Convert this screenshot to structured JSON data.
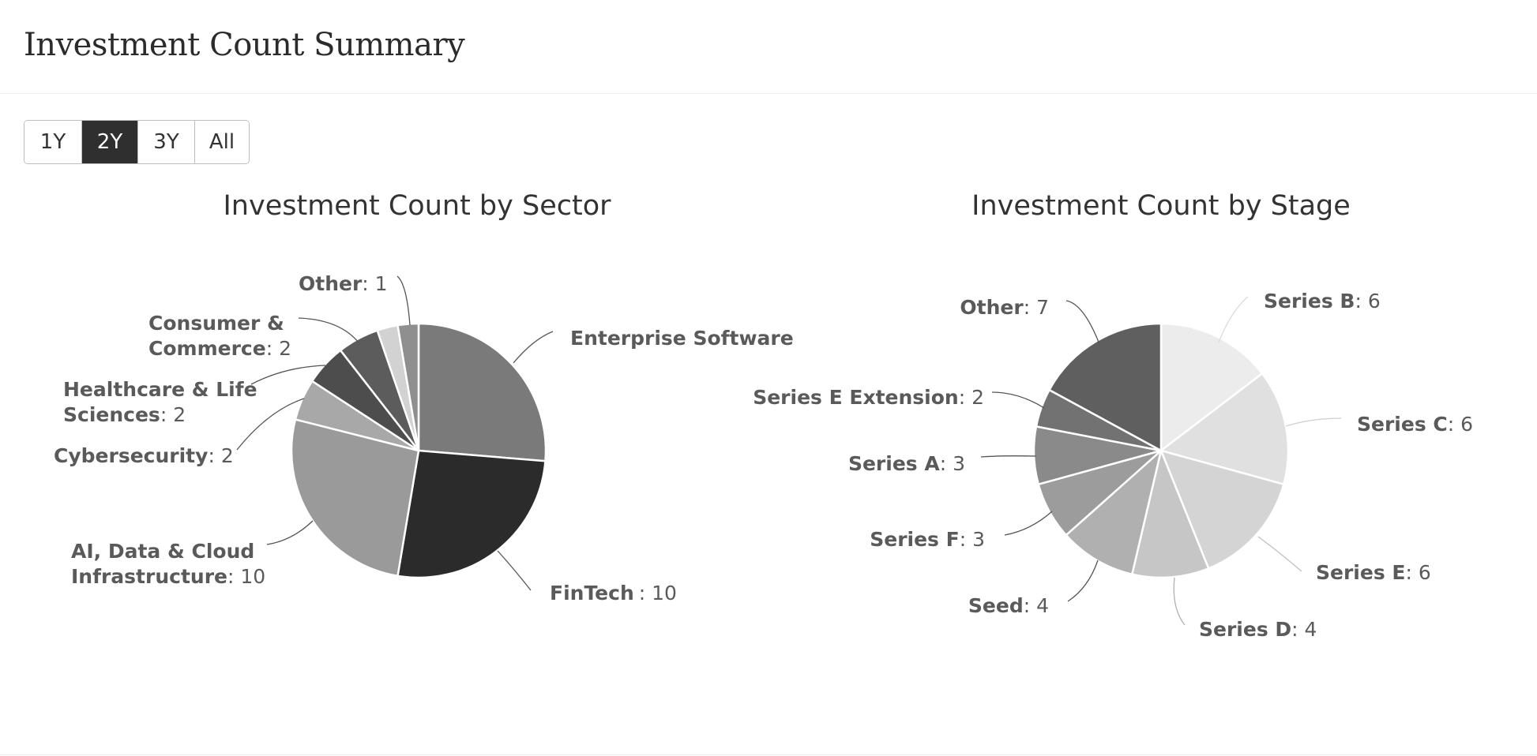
{
  "header": {
    "title": "Investment Count Summary"
  },
  "range_selector": {
    "options": [
      "1Y",
      "2Y",
      "3Y",
      "All"
    ],
    "selected": "2Y"
  },
  "chart_data": [
    {
      "type": "pie",
      "title": "Investment Count by Sector",
      "slices": [
        {
          "label": "Enterprise Software",
          "value": 10,
          "color": "#7a7a7a"
        },
        {
          "label": "FinTech",
          "value": 10,
          "color": "#2b2b2b"
        },
        {
          "label": "AI, Data & Cloud Infrastructure",
          "value": 10,
          "color": "#9a9a9a"
        },
        {
          "label": "Cybersecurity",
          "value": 2,
          "color": "#a8a8a8"
        },
        {
          "label": "Healthcare & Life Sciences",
          "value": 2,
          "color": "#4d4d4d"
        },
        {
          "label": "Consumer & Commerce",
          "value": 2,
          "color": "#5c5c5c"
        },
        {
          "label": "",
          "value": 1,
          "color": "#d2d2d2"
        },
        {
          "label": "Other",
          "value": 1,
          "color": "#8f8f8f"
        }
      ]
    },
    {
      "type": "pie",
      "title": "Investment Count by Stage",
      "slices": [
        {
          "label": "Series B",
          "value": 6,
          "color": "#ececec"
        },
        {
          "label": "Series C",
          "value": 6,
          "color": "#e0e0e0"
        },
        {
          "label": "Series E",
          "value": 6,
          "color": "#d4d4d4"
        },
        {
          "label": "Series D",
          "value": 4,
          "color": "#c6c6c6"
        },
        {
          "label": "Seed",
          "value": 4,
          "color": "#b0b0b0"
        },
        {
          "label": "Series F",
          "value": 3,
          "color": "#9c9c9c"
        },
        {
          "label": "Series A",
          "value": 3,
          "color": "#8a8a8a"
        },
        {
          "label": "Series E Extension",
          "value": 2,
          "color": "#727272"
        },
        {
          "label": "Other",
          "value": 7,
          "color": "#5f5f5f"
        }
      ]
    }
  ]
}
